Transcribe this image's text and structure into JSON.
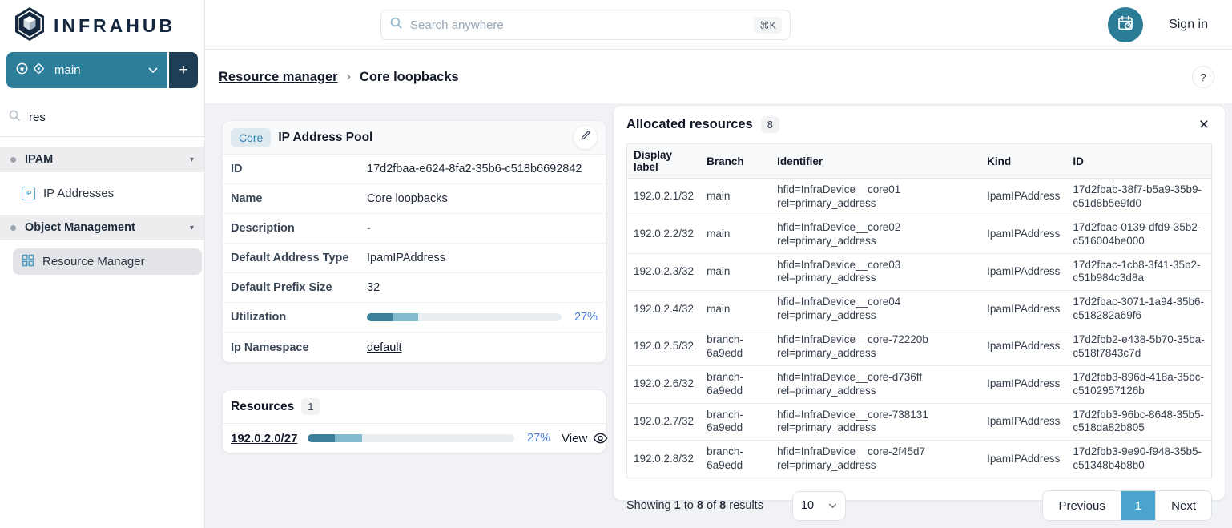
{
  "app": {
    "brand": "INFRAHUB",
    "sign_in_label": "Sign in"
  },
  "topbar": {
    "search_placeholder": "Search anywhere",
    "search_shortcut": "⌘K"
  },
  "sidebar": {
    "branch": {
      "name": "main",
      "add_label": "+"
    },
    "filter_value": "res",
    "groups": [
      {
        "label": "IPAM",
        "items": [
          {
            "label": "IP Addresses"
          }
        ]
      },
      {
        "label": "Object Management",
        "items": [
          {
            "label": "Resource Manager"
          }
        ]
      }
    ]
  },
  "breadcrumb": {
    "parent": "Resource manager",
    "separator": "›",
    "current": "Core loopbacks",
    "help": "?"
  },
  "pool_card": {
    "badge": "Core",
    "title": "IP Address Pool",
    "fields": [
      {
        "label": "ID",
        "value": "17d2fbaa-e624-8fa2-35b6-c518b6692842"
      },
      {
        "label": "Name",
        "value": "Core loopbacks"
      },
      {
        "label": "Description",
        "value": "-"
      },
      {
        "label": "Default Address Type",
        "value": "IpamIPAddress"
      },
      {
        "label": "Default Prefix Size",
        "value": "32"
      },
      {
        "label": "Utilization",
        "value": "27%",
        "bar_dark_pct": 13,
        "bar_light_pct": 13.5
      },
      {
        "label": "Ip Namespace",
        "value": "default"
      }
    ]
  },
  "resources_card": {
    "title": "Resources",
    "count": "1",
    "row": {
      "prefix": "192.0.2.0/27",
      "percent": "27%",
      "view_label": "View",
      "bar_dark_pct": 13,
      "bar_light_pct": 13.5
    }
  },
  "allocated": {
    "title": "Allocated resources",
    "count": "8",
    "columns": [
      "Display label",
      "Branch",
      "Identifier",
      "Kind",
      "ID"
    ],
    "rows": [
      {
        "display": "192.0.2.1/32",
        "branch": "main",
        "identifier": "hfid=InfraDevice__core01\nrel=primary_address",
        "kind": "IpamIPAddress",
        "id": "17d2fbab-38f7-b5a9-35b9-c51d8b5e9fd0"
      },
      {
        "display": "192.0.2.2/32",
        "branch": "main",
        "identifier": "hfid=InfraDevice__core02\nrel=primary_address",
        "kind": "IpamIPAddress",
        "id": "17d2fbac-0139-dfd9-35b2-c516004be000"
      },
      {
        "display": "192.0.2.3/32",
        "branch": "main",
        "identifier": "hfid=InfraDevice__core03\nrel=primary_address",
        "kind": "IpamIPAddress",
        "id": "17d2fbac-1cb8-3f41-35b2-c51b984c3d8a"
      },
      {
        "display": "192.0.2.4/32",
        "branch": "main",
        "identifier": "hfid=InfraDevice__core04\nrel=primary_address",
        "kind": "IpamIPAddress",
        "id": "17d2fbac-3071-1a94-35b6-c518282a69f6"
      },
      {
        "display": "192.0.2.5/32",
        "branch": "branch-6a9edd",
        "identifier": "hfid=InfraDevice__core-72220b\nrel=primary_address",
        "kind": "IpamIPAddress",
        "id": "17d2fbb2-e438-5b70-35ba-c518f7843c7d"
      },
      {
        "display": "192.0.2.6/32",
        "branch": "branch-6a9edd",
        "identifier": "hfid=InfraDevice__core-d736ff\nrel=primary_address",
        "kind": "IpamIPAddress",
        "id": "17d2fbb3-896d-418a-35bc-c5102957126b"
      },
      {
        "display": "192.0.2.7/32",
        "branch": "branch-6a9edd",
        "identifier": "hfid=InfraDevice__core-738131\nrel=primary_address",
        "kind": "IpamIPAddress",
        "id": "17d2fbb3-96bc-8648-35b5-c518da82b805"
      },
      {
        "display": "192.0.2.8/32",
        "branch": "branch-6a9edd",
        "identifier": "hfid=InfraDevice__core-2f45d7\nrel=primary_address",
        "kind": "IpamIPAddress",
        "id": "17d2fbb3-9e90-f948-35b5-c51348b4b8b0"
      }
    ],
    "pagination": {
      "showing_word": "Showing",
      "from": "1",
      "to_word": "to",
      "to": "8",
      "of_word": "of",
      "total": "8",
      "results_word": "results",
      "page_size": "10",
      "previous": "Previous",
      "page": "1",
      "next": "Next"
    }
  },
  "icons": {
    "plus": "+",
    "help": "?",
    "close": "×",
    "breadcrumb_sep": "›",
    "group_caret": "▾",
    "command_k": "⌘K",
    "named": [
      "infrahub-logo-icon",
      "branch-shield-icon",
      "branch-diamond-icon",
      "chevron-down-icon",
      "search-icon",
      "calendar-clock-icon",
      "ip-addresses-icon",
      "resource-manager-grid-icon",
      "pencil-icon",
      "eye-icon",
      "close-icon",
      "help-icon"
    ]
  },
  "colors": {
    "accent_teal": "#2c7e9b",
    "dark_navy": "#1d3e55",
    "logo_navy": "#14273e",
    "badge_blue_bg": "#dfe9f0",
    "badge_blue_text": "#2e7fae",
    "bar_dark": "#3c7f9b",
    "bar_light": "#82bacf",
    "bar_track": "#e8eef2",
    "percent_blue": "#4b7ddb",
    "pager_active": "#4ba4ce",
    "content_bg": "#f1f2f5",
    "icon_blue": "#4f9fc7"
  }
}
